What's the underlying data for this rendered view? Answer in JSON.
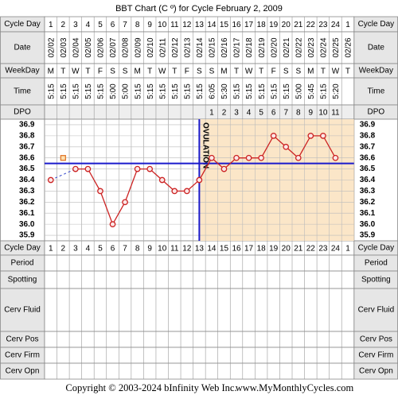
{
  "title": "BBT Chart (C º) for Cycle February 2, 2009",
  "rows": {
    "cycle_day": "Cycle Day",
    "date": "Date",
    "weekday": "WeekDay",
    "time": "Time",
    "dpo": "DPO",
    "period": "Period",
    "spotting": "Spotting",
    "cerv_fluid": "Cerv Fluid",
    "cerv_pos": "Cerv Pos",
    "cerv_firm": "Cerv Firm",
    "cerv_opn": "Cerv Opn"
  },
  "cycle_days": [
    1,
    2,
    3,
    4,
    5,
    6,
    7,
    8,
    9,
    10,
    11,
    12,
    13,
    14,
    15,
    16,
    17,
    18,
    19,
    20,
    21,
    22,
    23,
    24,
    1
  ],
  "dates": [
    "02/02",
    "02/03",
    "02/04",
    "02/05",
    "02/06",
    "02/07",
    "02/08",
    "02/09",
    "02/10",
    "02/11",
    "02/12",
    "02/13",
    "02/14",
    "02/15",
    "02/16",
    "02/17",
    "02/18",
    "02/19",
    "02/20",
    "02/21",
    "02/22",
    "02/23",
    "02/24",
    "02/25",
    "02/26"
  ],
  "weekdays": [
    "M",
    "T",
    "W",
    "T",
    "F",
    "S",
    "S",
    "M",
    "T",
    "W",
    "T",
    "F",
    "S",
    "S",
    "M",
    "T",
    "W",
    "T",
    "F",
    "S",
    "S",
    "M",
    "T",
    "W",
    "T"
  ],
  "times": [
    "5:15",
    "5:15",
    "5:15",
    "5:15",
    "5:15",
    "5:00",
    "5:00",
    "5:15",
    "5:15",
    "5:15",
    "5:15",
    "5:15",
    "5:15",
    "6:05",
    "5:30",
    "5:15",
    "5:15",
    "5:15",
    "5:15",
    "5:15",
    "5:00",
    "5:45",
    "5:15",
    "5:20",
    null
  ],
  "dpo": [
    null,
    null,
    null,
    null,
    null,
    null,
    null,
    null,
    null,
    null,
    null,
    null,
    null,
    1,
    2,
    3,
    4,
    5,
    6,
    7,
    8,
    9,
    10,
    11,
    null
  ],
  "chart_data": {
    "type": "line",
    "values": [
      36.4,
      null,
      36.5,
      36.5,
      36.3,
      36.0,
      36.2,
      36.5,
      36.5,
      36.4,
      36.3,
      36.3,
      36.4,
      36.6,
      36.5,
      36.6,
      36.6,
      36.6,
      36.8,
      36.7,
      36.6,
      36.8,
      36.8,
      36.6,
      null
    ],
    "discarded_values": [
      null,
      36.6,
      null,
      null,
      null,
      null,
      null,
      null,
      null,
      null,
      null,
      null,
      null,
      null,
      null,
      null,
      null,
      null,
      null,
      null,
      null,
      null,
      null,
      null,
      null
    ],
    "color": "#cc2222",
    "discarded_color": "#e07020",
    "coverline": 36.55,
    "coverline_color": "#1a1acc",
    "ovulation_day_index": 12,
    "ovulation_label": "OVULATION",
    "luteal_color": "#fbe6c8",
    "ylim": [
      35.85,
      36.95
    ],
    "yticks": [
      36.9,
      36.8,
      36.7,
      36.6,
      36.5,
      36.4,
      36.3,
      36.2,
      36.1,
      {
        "value": 36.0,
        "label": "36.0"
      },
      35.9
    ],
    "grid": true
  },
  "footer": {
    "copyright": "Copyright © 2003-2024 bInfinity Web Inc.",
    "site": "www.MyMonthlyCycles.com"
  }
}
